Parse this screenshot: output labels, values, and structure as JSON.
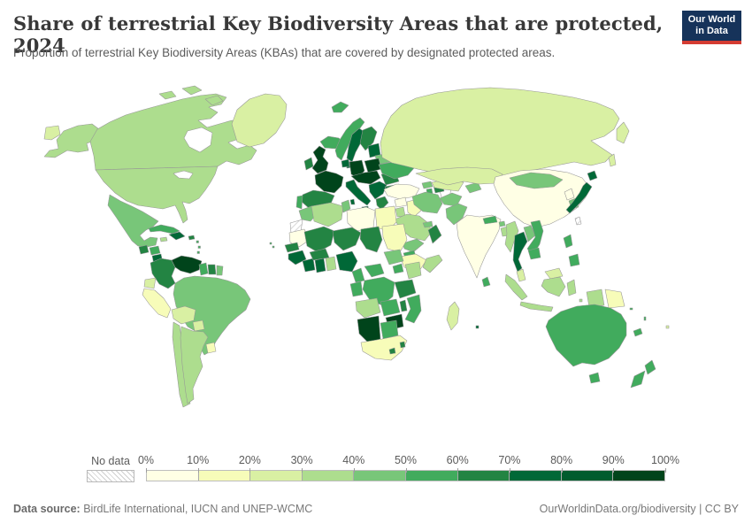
{
  "header": {
    "title": "Share of terrestrial Key Biodiversity Areas that are protected, 2024",
    "subtitle": "Proportion of terrestrial Key Biodiversity Areas (KBAs) that are covered by designated protected areas.",
    "logo_line1": "Our World",
    "logo_line2": "in Data"
  },
  "footer": {
    "source_label": "Data source:",
    "source_text": " BirdLife International, IUCN and UNEP-WCMC",
    "link_text": "OurWorldinData.org/biodiversity | CC BY"
  },
  "legend": {
    "no_data_label": "No data",
    "no_data_pattern": "diagonal-hatch",
    "tick_labels": [
      "0%",
      "10%",
      "20%",
      "30%",
      "40%",
      "50%",
      "60%",
      "70%",
      "80%",
      "90%",
      "100%"
    ],
    "bin_colors": [
      "#ffffe5",
      "#f7fcb9",
      "#d9f0a3",
      "#addd8e",
      "#78c679",
      "#41ab5d",
      "#238443",
      "#006837",
      "#015c2e",
      "#00441b"
    ]
  },
  "map_colors": {
    "canada": "#addd8e",
    "usa": "#addd8e",
    "alaska": "#addd8e",
    "greenland": "#d9f0a3",
    "chukotka": "#d9f0a3",
    "mexico": "#78c679",
    "guatemala": "#238443",
    "honduras": "#41ab5d",
    "nicaragua": "#006837",
    "costa_rica_panama": "#78c679",
    "cuba": "#41ab5d",
    "jamaica": "#addd8e",
    "hispaniola": "#006837",
    "puerto_rico": "#238443",
    "antilles": "#41ab5d",
    "colombia": "#238443",
    "venezuela": "#00441b",
    "guyana": "#41ab5d",
    "suriname": "#238443",
    "guyane": "#78c679",
    "brazil": "#78c679",
    "ecuador": "#d9f0a3",
    "peru": "#f7fcb9",
    "bolivia": "#d9f0a3",
    "paraguay": "#d9f0a3",
    "chile": "#addd8e",
    "argentina": "#addd8e",
    "uruguay": "#f7fcb9",
    "iceland": "#41ab5d",
    "svalbard": "#41ab5d",
    "uk": "#00441b",
    "ireland": "#238443",
    "norway": "#41ab5d",
    "sweden": "#006837",
    "finland": "#238443",
    "denmark": "#006837",
    "baltics": "#006837",
    "belarus": "#78c679",
    "poland": "#00441b",
    "germany": "#00441b",
    "lowlands": "#006837",
    "france": "#00441b",
    "spain": "#238443",
    "portugal": "#41ab5d",
    "italy": "#006837",
    "central_europe": "#00441b",
    "balkans": "#006837",
    "greece": "#238443",
    "romania": "#238443",
    "bulgaria": "#238443",
    "ukraine": "#41ab5d",
    "russia": "#d9f0a3",
    "turkey": "#ffffe5",
    "georgia": "#78c679",
    "azerbaijan": "#238443",
    "armenia": "#41ab5d",
    "syria": "#ffffe5",
    "israel": "#238443",
    "jordan": "#addd8e",
    "iraq": "#f7fcb9",
    "saudi": "#addd8e",
    "yemen": "#78c679",
    "oman": "#238443",
    "uae": "#78c679",
    "iran": "#78c679",
    "afghanistan": "#78c679",
    "pakistan": "#78c679",
    "turkmen_uzbek": "#d9f0a3",
    "kyrgyz_tajik": "#78c679",
    "kazakhstan": "#d9f0a3",
    "india": "#ffffe5",
    "nepal": "#41ab5d",
    "bhutan": "#78c679",
    "bangladesh": "#addd8e",
    "sri_lanka": "#41ab5d",
    "china": "#ffffe5",
    "mongolia": "#78c679",
    "north_korea": "#ffffe5",
    "south_korea": "#78c679",
    "japan": "#006837",
    "myanmar": "#addd8e",
    "thailand": "#006837",
    "laos": "#78c679",
    "vietnam": "#41ab5d",
    "cambodia": "#41ab5d",
    "malaysia": "#d9f0a3",
    "indonesia": "#addd8e",
    "png": "#f7fcb9",
    "philippines": "#41ab5d",
    "australia": "#41ab5d",
    "new_zealand": "#41ab5d",
    "new_caledonia": "#41ab5d",
    "melanesia": "#41ab5d",
    "fiji": "#d9f0a3",
    "morocco": "#78c679",
    "algeria": "#addd8e",
    "tunisia": "#78c679",
    "libya": "#ffffe5",
    "egypt": "#f7fcb9",
    "mauritania": "#ffffe5",
    "mali": "#238443",
    "niger": "#238443",
    "chad": "#238443",
    "sudan": "#f7fcb9",
    "eritrea": "#41ab5d",
    "ethiopia": "#f7fcb9",
    "somalia": "#addd8e",
    "senegal": "#238443",
    "guineas": "#006837",
    "cote_divoire": "#006837",
    "ghana": "#006837",
    "togo_benin": "#addd8e",
    "burkina": "#238443",
    "nigeria": "#006837",
    "cameroon": "#41ab5d",
    "car": "#41ab5d",
    "south_sudan": "#78c679",
    "uganda": "#41ab5d",
    "kenya": "#addd8e",
    "gabon_congo": "#41ab5d",
    "drc": "#41ab5d",
    "tanzania": "#238443",
    "angola": "#addd8e",
    "zambia": "#41ab5d",
    "malawi": "#238443",
    "mozambique": "#41ab5d",
    "zimbabwe": "#00441b",
    "namibia": "#00441b",
    "botswana": "#41ab5d",
    "south_africa": "#f7fcb9",
    "lesotho": "#238443",
    "eswatini": "#238443",
    "madagascar": "#d9f0a3",
    "mauritius": "#006837",
    "cape_verde": "#41ab5d"
  },
  "chart_data": {
    "type": "heatmap",
    "subtype": "world-choropleth",
    "title": "Share of terrestrial Key Biodiversity Areas that are protected, 2024",
    "unit": "%",
    "legend_position": "bottom",
    "bins": [
      "0-10%",
      "10-20%",
      "20-30%",
      "30-40%",
      "40-50%",
      "50-60%",
      "60-70%",
      "70-80%",
      "80-90%",
      "90-100%"
    ],
    "regions": [
      {
        "name": "Canada",
        "range": "30-40%"
      },
      {
        "name": "United States",
        "range": "30-40%"
      },
      {
        "name": "Greenland",
        "range": "20-30%"
      },
      {
        "name": "Mexico",
        "range": "40-50%"
      },
      {
        "name": "Guatemala",
        "range": "60-70%"
      },
      {
        "name": "Honduras",
        "range": "50-60%"
      },
      {
        "name": "Nicaragua",
        "range": "70-80%"
      },
      {
        "name": "Cuba",
        "range": "50-60%"
      },
      {
        "name": "Dominican Republic",
        "range": "70-80%"
      },
      {
        "name": "Colombia",
        "range": "60-70%"
      },
      {
        "name": "Venezuela",
        "range": "90-100%"
      },
      {
        "name": "Guyana",
        "range": "50-60%"
      },
      {
        "name": "Suriname",
        "range": "60-70%"
      },
      {
        "name": "French Guiana",
        "range": "40-50%"
      },
      {
        "name": "Brazil",
        "range": "40-50%"
      },
      {
        "name": "Ecuador",
        "range": "20-30%"
      },
      {
        "name": "Peru",
        "range": "10-20%"
      },
      {
        "name": "Bolivia",
        "range": "20-30%"
      },
      {
        "name": "Paraguay",
        "range": "20-30%"
      },
      {
        "name": "Chile",
        "range": "30-40%"
      },
      {
        "name": "Argentina",
        "range": "30-40%"
      },
      {
        "name": "Uruguay",
        "range": "10-20%"
      },
      {
        "name": "Iceland",
        "range": "50-60%"
      },
      {
        "name": "United Kingdom",
        "range": "90-100%"
      },
      {
        "name": "Ireland",
        "range": "60-70%"
      },
      {
        "name": "Norway",
        "range": "50-60%"
      },
      {
        "name": "Sweden",
        "range": "70-80%"
      },
      {
        "name": "Finland",
        "range": "60-70%"
      },
      {
        "name": "France",
        "range": "90-100%"
      },
      {
        "name": "Spain",
        "range": "60-70%"
      },
      {
        "name": "Portugal",
        "range": "50-60%"
      },
      {
        "name": "Germany",
        "range": "90-100%"
      },
      {
        "name": "Poland",
        "range": "90-100%"
      },
      {
        "name": "Italy",
        "range": "70-80%"
      },
      {
        "name": "Central Europe",
        "range": "90-100%"
      },
      {
        "name": "Balkans",
        "range": "70-80%"
      },
      {
        "name": "Greece",
        "range": "60-70%"
      },
      {
        "name": "Romania",
        "range": "60-70%"
      },
      {
        "name": "Bulgaria",
        "range": "60-70%"
      },
      {
        "name": "Ukraine",
        "range": "50-60%"
      },
      {
        "name": "Belarus",
        "range": "40-50%"
      },
      {
        "name": "Baltic states",
        "range": "70-80%"
      },
      {
        "name": "Russia",
        "range": "20-30%"
      },
      {
        "name": "Turkey",
        "range": "0-10%"
      },
      {
        "name": "Syria",
        "range": "0-10%"
      },
      {
        "name": "Iraq",
        "range": "10-20%"
      },
      {
        "name": "Saudi Arabia",
        "range": "30-40%"
      },
      {
        "name": "Yemen",
        "range": "40-50%"
      },
      {
        "name": "Oman",
        "range": "60-70%"
      },
      {
        "name": "Iran",
        "range": "40-50%"
      },
      {
        "name": "Afghanistan",
        "range": "40-50%"
      },
      {
        "name": "Pakistan",
        "range": "40-50%"
      },
      {
        "name": "Kazakhstan",
        "range": "20-30%"
      },
      {
        "name": "Uzbekistan/Turkmenistan",
        "range": "20-30%"
      },
      {
        "name": "India",
        "range": "0-10%"
      },
      {
        "name": "Nepal",
        "range": "50-60%"
      },
      {
        "name": "Bangladesh",
        "range": "30-40%"
      },
      {
        "name": "Sri Lanka",
        "range": "50-60%"
      },
      {
        "name": "China",
        "range": "0-10%"
      },
      {
        "name": "Mongolia",
        "range": "40-50%"
      },
      {
        "name": "North Korea",
        "range": "0-10%"
      },
      {
        "name": "South Korea",
        "range": "40-50%"
      },
      {
        "name": "Japan",
        "range": "70-80%"
      },
      {
        "name": "Myanmar",
        "range": "30-40%"
      },
      {
        "name": "Thailand",
        "range": "70-80%"
      },
      {
        "name": "Laos",
        "range": "40-50%"
      },
      {
        "name": "Vietnam",
        "range": "50-60%"
      },
      {
        "name": "Cambodia",
        "range": "50-60%"
      },
      {
        "name": "Malaysia",
        "range": "20-30%"
      },
      {
        "name": "Indonesia",
        "range": "30-40%"
      },
      {
        "name": "Papua New Guinea",
        "range": "10-20%"
      },
      {
        "name": "Philippines",
        "range": "50-60%"
      },
      {
        "name": "Australia",
        "range": "50-60%"
      },
      {
        "name": "New Zealand",
        "range": "50-60%"
      },
      {
        "name": "Morocco",
        "range": "40-50%"
      },
      {
        "name": "Algeria",
        "range": "30-40%"
      },
      {
        "name": "Tunisia",
        "range": "40-50%"
      },
      {
        "name": "Libya",
        "range": "0-10%"
      },
      {
        "name": "Egypt",
        "range": "10-20%"
      },
      {
        "name": "Mauritania",
        "range": "0-10%"
      },
      {
        "name": "Mali",
        "range": "60-70%"
      },
      {
        "name": "Niger",
        "range": "60-70%"
      },
      {
        "name": "Chad",
        "range": "60-70%"
      },
      {
        "name": "Sudan",
        "range": "10-20%"
      },
      {
        "name": "Ethiopia",
        "range": "10-20%"
      },
      {
        "name": "Somalia",
        "range": "30-40%"
      },
      {
        "name": "Senegal",
        "range": "60-70%"
      },
      {
        "name": "Guinea",
        "range": "70-80%"
      },
      {
        "name": "Cote d'Ivoire",
        "range": "70-80%"
      },
      {
        "name": "Ghana",
        "range": "70-80%"
      },
      {
        "name": "Burkina Faso",
        "range": "60-70%"
      },
      {
        "name": "Nigeria",
        "range": "70-80%"
      },
      {
        "name": "Cameroon",
        "range": "50-60%"
      },
      {
        "name": "DR Congo",
        "range": "50-60%"
      },
      {
        "name": "Tanzania",
        "range": "60-70%"
      },
      {
        "name": "Kenya",
        "range": "30-40%"
      },
      {
        "name": "Angola",
        "range": "30-40%"
      },
      {
        "name": "Zambia",
        "range": "50-60%"
      },
      {
        "name": "Mozambique",
        "range": "50-60%"
      },
      {
        "name": "Zimbabwe",
        "range": "90-100%"
      },
      {
        "name": "Namibia",
        "range": "90-100%"
      },
      {
        "name": "Botswana",
        "range": "50-60%"
      },
      {
        "name": "South Africa",
        "range": "10-20%"
      },
      {
        "name": "Lesotho",
        "range": "60-70%"
      },
      {
        "name": "Madagascar",
        "range": "20-30%"
      },
      {
        "name": "Western Sahara",
        "range": "no data"
      },
      {
        "name": "Taiwan",
        "range": "no data"
      }
    ]
  }
}
